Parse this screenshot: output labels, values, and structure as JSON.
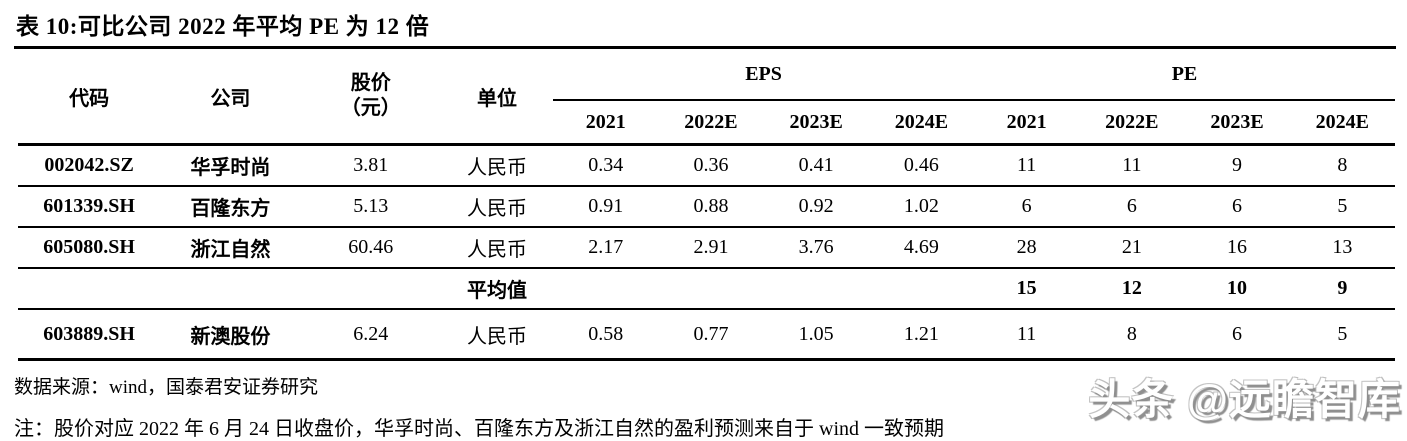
{
  "title": "表 10:可比公司 2022 年平均 PE 为 12 倍",
  "table": {
    "headers": {
      "code": "代码",
      "company": "公司",
      "price_line1": "股价",
      "price_line2": "（元）",
      "unit": "单位",
      "eps_group": "EPS",
      "pe_group": "PE",
      "years_eps": [
        "2021",
        "2022E",
        "2023E",
        "2024E"
      ],
      "years_pe": [
        "2021",
        "2022E",
        "2023E",
        "2024E"
      ]
    },
    "rows": [
      {
        "code": "002042.SZ",
        "company": "华孚时尚",
        "price": "3.81",
        "unit": "人民币",
        "eps": [
          "0.34",
          "0.36",
          "0.41",
          "0.46"
        ],
        "pe": [
          "11",
          "11",
          "9",
          "8"
        ]
      },
      {
        "code": "601339.SH",
        "company": "百隆东方",
        "price": "5.13",
        "unit": "人民币",
        "eps": [
          "0.91",
          "0.88",
          "0.92",
          "1.02"
        ],
        "pe": [
          "6",
          "6",
          "6",
          "5"
        ]
      },
      {
        "code": "605080.SH",
        "company": "浙江自然",
        "price": "60.46",
        "unit": "人民币",
        "eps": [
          "2.17",
          "2.91",
          "3.76",
          "4.69"
        ],
        "pe": [
          "28",
          "21",
          "16",
          "13"
        ]
      },
      {
        "code": "603889.SH",
        "company": "新澳股份",
        "price": "6.24",
        "unit": "人民币",
        "eps": [
          "0.58",
          "0.77",
          "1.05",
          "1.21"
        ],
        "pe": [
          "11",
          "8",
          "6",
          "5"
        ]
      }
    ],
    "average": {
      "label": "平均值",
      "pe": [
        "15",
        "12",
        "10",
        "9"
      ]
    }
  },
  "footer": {
    "source": "数据来源：wind，国泰君安证券研究",
    "note": "注：股价对应 2022 年 6 月 24 日收盘价，华孚时尚、百隆东方及浙江自然的盈利预测来自于 wind 一致预期"
  },
  "watermark": "头条 @远瞻智库",
  "colors": {
    "text": "#000000",
    "background": "#ffffff",
    "rule": "#000000",
    "watermark_fill": "#ffffff",
    "watermark_shadow": "#8f8f8f"
  }
}
